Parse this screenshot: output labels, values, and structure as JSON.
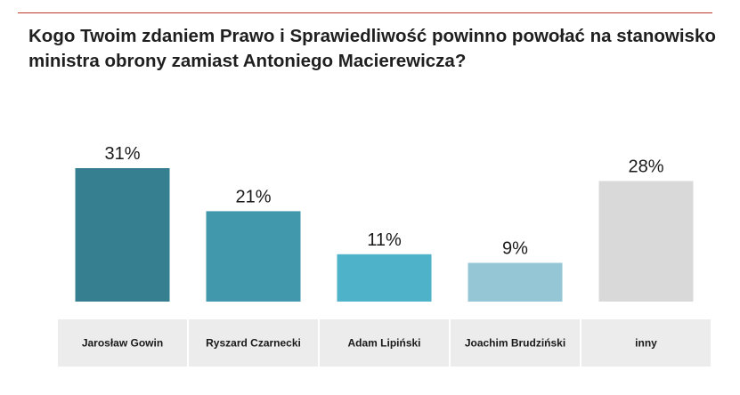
{
  "chart_data": {
    "type": "bar",
    "title": "Kogo Twoim zdaniem Prawo i Sprawiedliwość powinno powołać na stanowisko ministra obrony zamiast Antoniego Macierewicza?",
    "categories": [
      "Jarosław Gowin",
      "Ryszard Czarnecki",
      "Adam Lipiński",
      "Joachim Brudziński",
      "inny"
    ],
    "values": [
      31,
      21,
      11,
      9,
      28
    ],
    "value_labels": [
      "31%",
      "21%",
      "11%",
      "9%",
      "28%"
    ],
    "colors": [
      "#357f91",
      "#4197ab",
      "#4eb2c9",
      "#94c6d6",
      "#d9d9d9"
    ],
    "label_cell_color": "#ececec",
    "accent_rule_color": "#c0392b",
    "ylim": [
      0,
      31
    ],
    "xlabel": "",
    "ylabel": "",
    "legend": "none",
    "grid": false
  }
}
